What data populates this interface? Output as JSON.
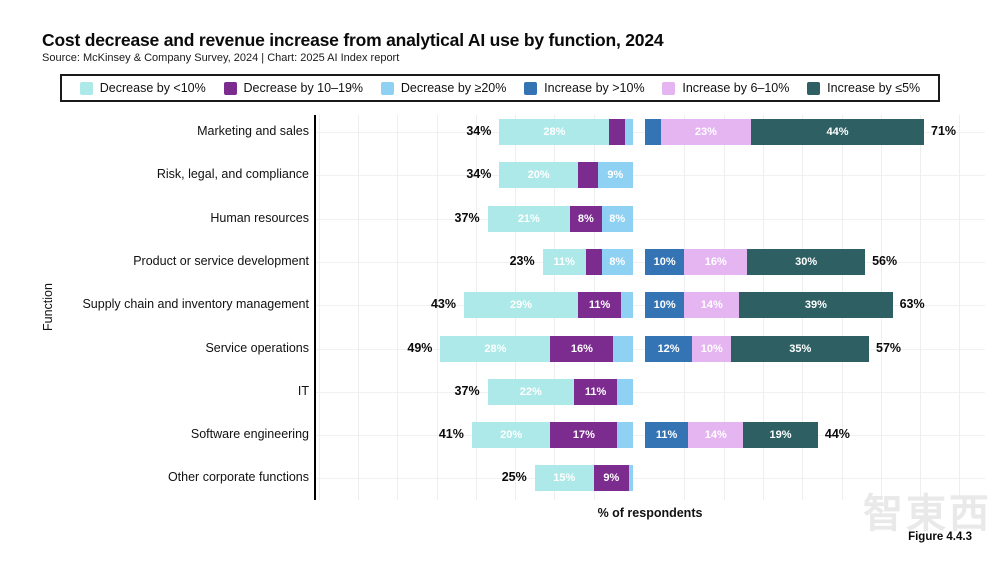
{
  "page": {
    "title": "Cost decrease and revenue increase from analytical AI use by function, 2024",
    "source": "Source: McKinsey & Company Survey, 2024 | Chart: 2025 AI Index report",
    "figure_label": "Figure 4.4.3",
    "watermark": "智東西"
  },
  "chart_data": {
    "type": "bar",
    "orientation": "horizontal",
    "title": "Cost decrease and revenue increase from analytical AI use by function, 2024",
    "xlabel": "% of respondents",
    "ylabel": "Function",
    "legend_position": "top",
    "grid": true,
    "label_min_pct": 8,
    "colors": {
      "dec_lt10": "#ade9e8",
      "dec_10_19": "#7b2c8e",
      "dec_ge20": "#8ed1f3",
      "inc_gt10": "#3473b4",
      "inc_6_10": "#e4b5f0",
      "inc_le5": "#2d5f63"
    },
    "legend": [
      {
        "key": "dec_lt10",
        "label": "Decrease by <10%"
      },
      {
        "key": "dec_10_19",
        "label": "Decrease by 10–19%"
      },
      {
        "key": "dec_ge20",
        "label": "Decrease by ≥20%"
      },
      {
        "key": "inc_gt10",
        "label": "Increase by >10%"
      },
      {
        "key": "inc_6_10",
        "label": "Increase by 6–10%"
      },
      {
        "key": "inc_le5",
        "label": "Increase by ≤5%"
      }
    ],
    "decrease_keys": [
      "dec_lt10",
      "dec_10_19",
      "dec_ge20"
    ],
    "increase_keys": [
      "inc_gt10",
      "inc_6_10",
      "inc_le5"
    ],
    "rows": [
      {
        "function": "Marketing and sales",
        "decrease_total": 34,
        "decrease": [
          28,
          4,
          2
        ],
        "increase_total": 71,
        "increase": [
          4,
          23,
          44
        ]
      },
      {
        "function": "Risk, legal, and compliance",
        "decrease_total": 34,
        "decrease": [
          20,
          5,
          9
        ],
        "increase_total": null,
        "increase": null
      },
      {
        "function": "Human resources",
        "decrease_total": 37,
        "decrease": [
          21,
          8,
          8
        ],
        "increase_total": null,
        "increase": null
      },
      {
        "function": "Product or service development",
        "decrease_total": 23,
        "decrease": [
          11,
          4,
          8
        ],
        "increase_total": 56,
        "increase": [
          10,
          16,
          30
        ]
      },
      {
        "function": "Supply chain and inventory management",
        "decrease_total": 43,
        "decrease": [
          29,
          11,
          3
        ],
        "increase_total": 63,
        "increase": [
          10,
          14,
          39
        ]
      },
      {
        "function": "Service operations",
        "decrease_total": 49,
        "decrease": [
          28,
          16,
          5
        ],
        "increase_total": 57,
        "increase": [
          12,
          10,
          35
        ]
      },
      {
        "function": "IT",
        "decrease_total": 37,
        "decrease": [
          22,
          11,
          4
        ],
        "increase_total": null,
        "increase": null
      },
      {
        "function": "Software engineering",
        "decrease_total": 41,
        "decrease": [
          20,
          17,
          4
        ],
        "increase_total": 44,
        "increase": [
          11,
          14,
          19
        ]
      },
      {
        "function": "Other corporate functions",
        "decrease_total": 25,
        "decrease": [
          15,
          9,
          1
        ],
        "increase_total": null,
        "increase": null
      }
    ]
  }
}
